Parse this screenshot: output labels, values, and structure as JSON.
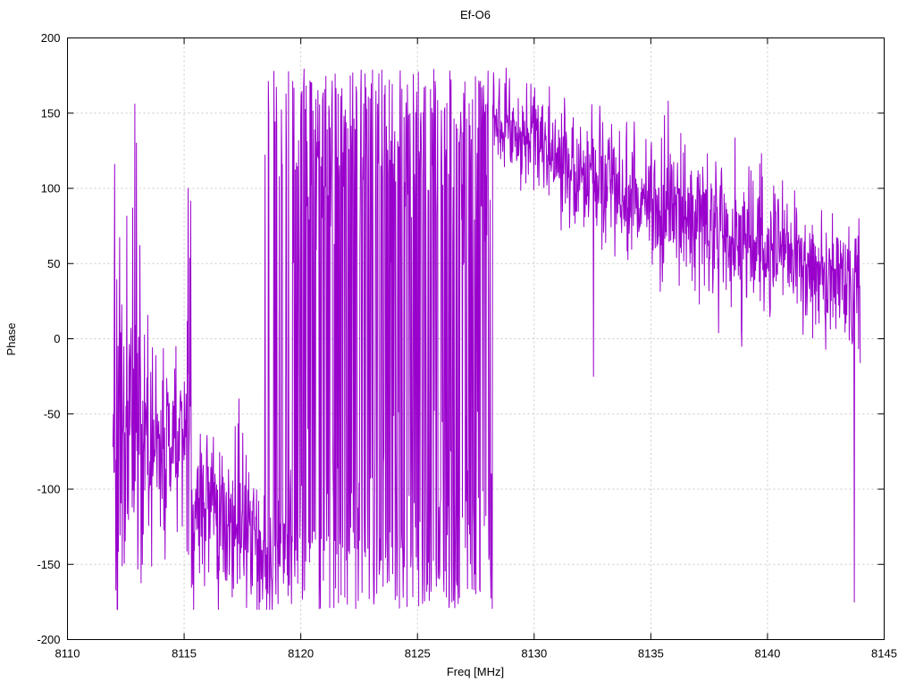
{
  "chart_data": {
    "type": "line",
    "title": "Ef-O6",
    "xlabel": "Freq [MHz]",
    "ylabel": "Phase",
    "xlim": [
      8110,
      8145
    ],
    "ylim": [
      -200,
      200
    ],
    "xticks": [
      8110,
      8115,
      8120,
      8125,
      8130,
      8135,
      8140,
      8145
    ],
    "yticks": [
      -200,
      -150,
      -100,
      -50,
      0,
      50,
      100,
      150,
      200
    ],
    "grid": true,
    "legend": "none",
    "line_color": "#9900cc",
    "grid_color": "#c9c9c9",
    "axis_color": "#000000",
    "background_color": "#ffffff",
    "seed": 1337,
    "step": 0.018,
    "x_start": 8111.95,
    "x_end": 8143.98,
    "series": [
      {
        "name": "Phase",
        "description": "Noisy phase-vs-frequency trace; phase wraps at +/-180 deg between ~8118.5 and ~8128.2 MHz, noisy around -60 to -130 deg from 8112-8118 MHz, then decreases from ~150 deg at 8128 MHz to ~45 deg at 8144 MHz",
        "segments": [
          {
            "x0": 8111.95,
            "x1": 8112.35,
            "base0": -50,
            "base1": -60,
            "noise": 75,
            "wrap": false,
            "spikes": 0.12,
            "spike_amp": 110
          },
          {
            "x0": 8112.35,
            "x1": 8113.35,
            "base0": -55,
            "base1": -60,
            "noise": 60,
            "wrap": false,
            "spikes": 0.1,
            "spike_amp": 120
          },
          {
            "x0": 8113.35,
            "x1": 8114.3,
            "base0": -70,
            "base1": -70,
            "noise": 32,
            "wrap": false,
            "spikes": 0.06,
            "spike_amp": 70
          },
          {
            "x0": 8114.3,
            "x1": 8115.05,
            "base0": -75,
            "base1": -65,
            "noise": 30,
            "wrap": false,
            "spikes": 0.08,
            "spike_amp": 60
          },
          {
            "x0": 8115.05,
            "x1": 8115.3,
            "base0": -50,
            "base1": -50,
            "noise": 45,
            "wrap": false,
            "spikes": 0.4,
            "spike_amp": 130
          },
          {
            "x0": 8115.3,
            "x1": 8116.6,
            "base0": -105,
            "base1": -115,
            "noise": 26,
            "wrap": false,
            "spikes": 0.05,
            "spike_amp": 55
          },
          {
            "x0": 8116.6,
            "x1": 8117.6,
            "base0": -115,
            "base1": -105,
            "noise": 30,
            "wrap": false,
            "spikes": 0.06,
            "spike_amp": 60
          },
          {
            "x0": 8117.6,
            "x1": 8118.45,
            "base0": -125,
            "base1": -135,
            "noise": 26,
            "wrap": false,
            "spikes": 0.05,
            "spike_amp": 50
          },
          {
            "x0": 8118.45,
            "x1": 8119.65,
            "base0": -140,
            "base1": -140,
            "noise": 25,
            "wrap": false,
            "mix": 0.45,
            "wrap_noise": 45,
            "spikes": 0.08,
            "spike_amp": 70
          },
          {
            "x0": 8119.65,
            "x1": 8128.25,
            "base0": 180,
            "base1": 180,
            "noise": 58,
            "wrap": true,
            "spikes": 0.0,
            "spike_amp": 0
          },
          {
            "x0": 8128.25,
            "x1": 8129.2,
            "base0": 150,
            "base1": 142,
            "noise": 16,
            "wrap": false,
            "spikes": 0.05,
            "spike_amp": 35
          },
          {
            "x0": 8129.2,
            "x1": 8130.6,
            "base0": 138,
            "base1": 128,
            "noise": 17,
            "wrap": false,
            "spikes": 0.05,
            "spike_amp": 40
          },
          {
            "x0": 8130.6,
            "x1": 8133.0,
            "base0": 120,
            "base1": 105,
            "noise": 18,
            "wrap": false,
            "spikes": 0.06,
            "spike_amp": 45
          },
          {
            "x0": 8133.0,
            "x1": 8134.6,
            "base0": 103,
            "base1": 96,
            "noise": 20,
            "wrap": false,
            "spikes": 0.06,
            "spike_amp": 45
          },
          {
            "x0": 8134.6,
            "x1": 8136.4,
            "base0": 96,
            "base1": 88,
            "noise": 22,
            "wrap": false,
            "spikes": 0.07,
            "spike_amp": 50
          },
          {
            "x0": 8136.4,
            "x1": 8138.2,
            "base0": 82,
            "base1": 70,
            "noise": 22,
            "wrap": false,
            "spikes": 0.06,
            "spike_amp": 55
          },
          {
            "x0": 8138.2,
            "x1": 8140.1,
            "base0": 68,
            "base1": 58,
            "noise": 22,
            "wrap": false,
            "spikes": 0.06,
            "spike_amp": 55
          },
          {
            "x0": 8140.1,
            "x1": 8141.6,
            "base0": 60,
            "base1": 52,
            "noise": 20,
            "wrap": false,
            "spikes": 0.06,
            "spike_amp": 50
          },
          {
            "x0": 8141.6,
            "x1": 8143.55,
            "base0": 48,
            "base1": 42,
            "noise": 20,
            "wrap": false,
            "spikes": 0.06,
            "spike_amp": 45
          },
          {
            "x0": 8143.55,
            "x1": 8143.98,
            "base0": 40,
            "base1": 30,
            "noise": 35,
            "wrap": false,
            "spikes": 0.25,
            "spike_amp": 120
          }
        ],
        "keypoints": [
          [
            8112.02,
            116
          ],
          [
            8112.88,
            156
          ],
          [
            8112.95,
            130
          ],
          [
            8113.1,
            62
          ],
          [
            8115.18,
            100
          ],
          [
            8117.35,
            -40
          ],
          [
            8131.3,
            160
          ],
          [
            8132.55,
            -25
          ],
          [
            8135.75,
            158
          ],
          [
            8137.9,
            4
          ],
          [
            8140.65,
            105
          ],
          [
            8143.72,
            -175
          ],
          [
            8143.95,
            35
          ]
        ]
      }
    ]
  }
}
